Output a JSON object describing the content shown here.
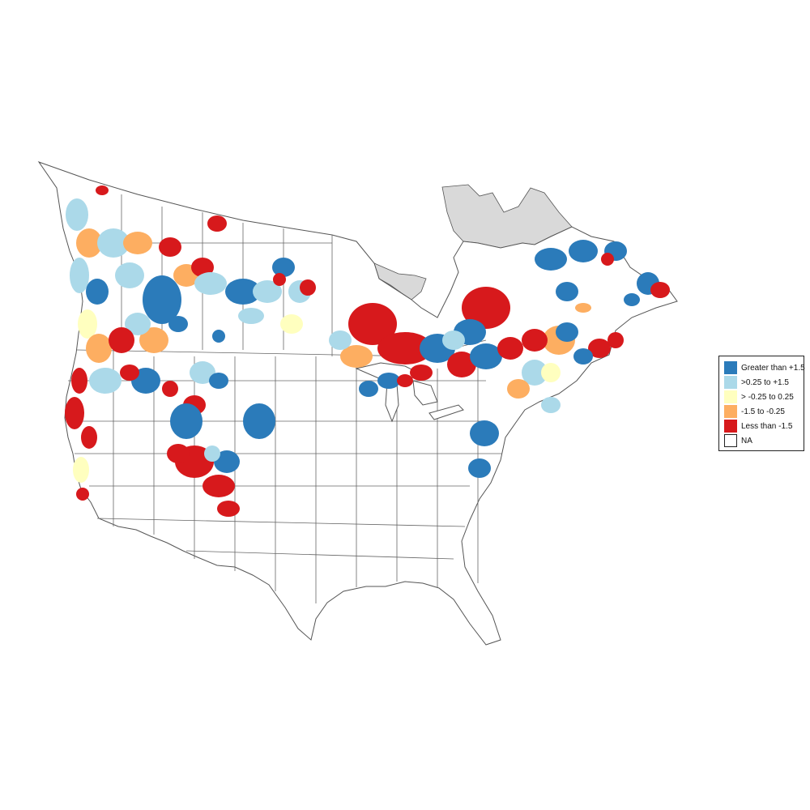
{
  "map": {
    "region": "North America (USA and Canada)",
    "projection": "conic equal-area",
    "boundaries": "state and province outlines",
    "basemap_fill": "#ffffff",
    "boundary_color": "#555555"
  },
  "legend": {
    "items": [
      {
        "label": "Greater than +1.5",
        "color": "#2b7bba"
      },
      {
        "label": ">0.25 to +1.5",
        "color": "#abd9e9"
      },
      {
        "label": "> -0.25 to 0.25",
        "color": "#ffffbf"
      },
      {
        "label": "-1.5 to -0.25",
        "color": "#fdae61"
      },
      {
        "label": "Less than -1.5",
        "color": "#d7191c"
      },
      {
        "label": "NA",
        "color": "#ffffff"
      }
    ]
  },
  "no_data_color": "#d9d9d9"
}
